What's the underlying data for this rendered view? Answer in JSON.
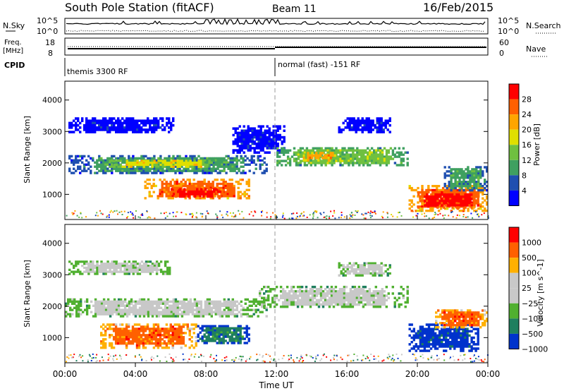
{
  "header": {
    "station": "South Pole Station (fitACF)",
    "beam": "Beam 11",
    "date": "16/Feb/2015"
  },
  "strips": {
    "nsky": {
      "label": "N.Sky",
      "ticks": [
        "10^5",
        "10^0"
      ],
      "right_ticks": [
        "10^5",
        "10^0"
      ],
      "right_label": "N.Search"
    },
    "freq": {
      "label_line1": "Freq.",
      "label_line2": "[MHz]",
      "ticks": [
        "18",
        "8"
      ],
      "right_ticks": [
        "60",
        "0"
      ],
      "right_label": "Nave"
    },
    "cpid": {
      "label": "CPID",
      "mode1": "themis 3300 RF",
      "mode2": "normal (fast) -151 RF"
    }
  },
  "colors": {
    "power": [
      "#0000ff",
      "#1f4fb0",
      "#3fa060",
      "#6fc040",
      "#dfdf00",
      "#ffa500",
      "#ff6000",
      "#ff0000"
    ],
    "velocity": [
      "#0033cc",
      "#1f7f5f",
      "#50b030",
      "#c8c8c8",
      "#c8c8c8",
      "#ffb000",
      "#ff6000",
      "#ff0000"
    ]
  },
  "chart_data": [
    {
      "type": "heatmap",
      "panel": "power",
      "ylabel": "Slant Range [km]",
      "y_ticks": [
        1000,
        2000,
        3000,
        4000
      ],
      "ylim": [
        200,
        4600
      ],
      "xlim": [
        0,
        24
      ],
      "colorbar_label": "Power [dB]",
      "colorbar_ticks": [
        4,
        8,
        12,
        16,
        20,
        24,
        28
      ],
      "regions": [
        {
          "t0": 0.2,
          "t1": 6.2,
          "r0": 2950,
          "r1": 3450,
          "level": 0
        },
        {
          "t0": 0.2,
          "t1": 11.5,
          "r0": 1650,
          "r1": 2250,
          "level": 2
        },
        {
          "t0": 2.5,
          "t1": 8.5,
          "r0": 1850,
          "r1": 2100,
          "level": 4
        },
        {
          "t0": 4.5,
          "t1": 10.5,
          "r0": 850,
          "r1": 1500,
          "level": 6
        },
        {
          "t0": 6.0,
          "t1": 9.0,
          "r0": 900,
          "r1": 1200,
          "level": 7
        },
        {
          "t0": 9.5,
          "t1": 12.5,
          "r0": 2300,
          "r1": 3200,
          "level": 0
        },
        {
          "t0": 12.0,
          "t1": 19.5,
          "r0": 1900,
          "r1": 2500,
          "level": 3
        },
        {
          "t0": 13.5,
          "t1": 15.5,
          "r0": 2050,
          "r1": 2350,
          "level": 5
        },
        {
          "t0": 15.5,
          "t1": 18.5,
          "r0": 2950,
          "r1": 3450,
          "level": 0
        },
        {
          "t0": 19.5,
          "t1": 24.0,
          "r0": 450,
          "r1": 1300,
          "level": 6
        },
        {
          "t0": 20.0,
          "t1": 23.5,
          "r0": 550,
          "r1": 1100,
          "level": 7
        },
        {
          "t0": 21.5,
          "t1": 24.0,
          "r0": 1100,
          "r1": 1900,
          "level": 2
        }
      ]
    },
    {
      "type": "heatmap",
      "panel": "velocity",
      "xlabel": "Time UT",
      "ylabel": "Slant Range [km]",
      "x_ticks": [
        "00:00",
        "04:00",
        "08:00",
        "12:00",
        "16:00",
        "20:00",
        "00:00"
      ],
      "y_ticks": [
        1000,
        2000,
        3000,
        4000
      ],
      "ylim": [
        200,
        4600
      ],
      "xlim": [
        0,
        24
      ],
      "colorbar_label": "Velocity [m s^-1]",
      "colorbar_ticks": [
        1000,
        500,
        100,
        25,
        -25,
        -100,
        -500,
        -1000
      ],
      "regions": [
        {
          "t0": 0.2,
          "t1": 6.0,
          "r0": 3000,
          "r1": 3450,
          "level": 3
        },
        {
          "t0": 0.0,
          "t1": 11.5,
          "r0": 1650,
          "r1": 2250,
          "level": 3
        },
        {
          "t0": 2.0,
          "t1": 7.5,
          "r0": 650,
          "r1": 1450,
          "level": 6
        },
        {
          "t0": 7.5,
          "t1": 10.5,
          "r0": 800,
          "r1": 1400,
          "level": 1
        },
        {
          "t0": 11.0,
          "t1": 19.5,
          "r0": 1950,
          "r1": 2650,
          "level": 3
        },
        {
          "t0": 15.5,
          "t1": 18.5,
          "r0": 2950,
          "r1": 3400,
          "level": 3
        },
        {
          "t0": 19.5,
          "t1": 23.5,
          "r0": 550,
          "r1": 1450,
          "level": 0
        },
        {
          "t0": 21.0,
          "t1": 24.0,
          "r0": 1300,
          "r1": 1900,
          "level": 6
        }
      ]
    }
  ]
}
